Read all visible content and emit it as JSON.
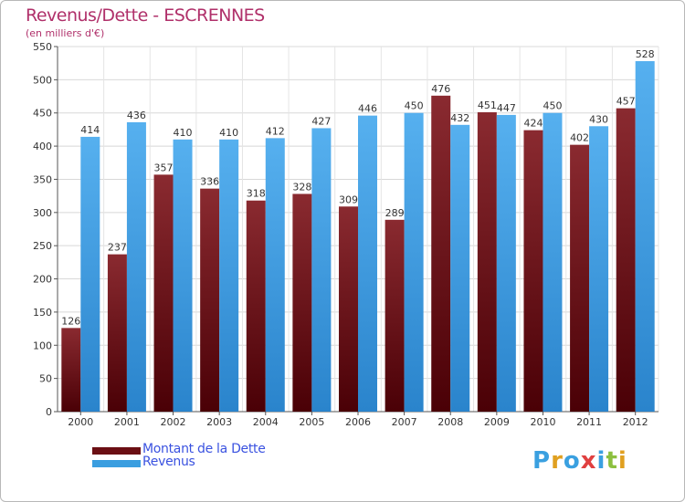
{
  "title": "Revenus/Dette - ESCRENNES",
  "subtitle": "(en milliers d'€)",
  "logo_text": "Proxiti",
  "colors": {
    "title": "#b0306a",
    "dette": "#7a1c22",
    "revenus": "#3a9ee0",
    "grid": "#d8d8d8",
    "legend_text": "#3a52e0"
  },
  "legend": [
    {
      "label": "Montant de la Dette",
      "color": "#6b0f14"
    },
    {
      "label": "Revenus",
      "color": "#3a9ee0"
    }
  ],
  "chart_data": {
    "type": "bar",
    "categories": [
      "2000",
      "2001",
      "2002",
      "2003",
      "2004",
      "2005",
      "2006",
      "2007",
      "2008",
      "2009",
      "2010",
      "2011",
      "2012"
    ],
    "series": [
      {
        "name": "Montant de la Dette",
        "values": [
          126,
          237,
          357,
          336,
          318,
          328,
          309,
          289,
          476,
          451,
          424,
          402,
          457
        ]
      },
      {
        "name": "Revenus",
        "values": [
          414,
          436,
          410,
          410,
          412,
          427,
          446,
          450,
          432,
          447,
          450,
          430,
          528
        ]
      }
    ],
    "ylim": [
      0,
      550
    ],
    "yticks": [
      0,
      50,
      100,
      150,
      200,
      250,
      300,
      350,
      400,
      450,
      500,
      550
    ],
    "grid": true,
    "legend_position": "bottom-left"
  }
}
